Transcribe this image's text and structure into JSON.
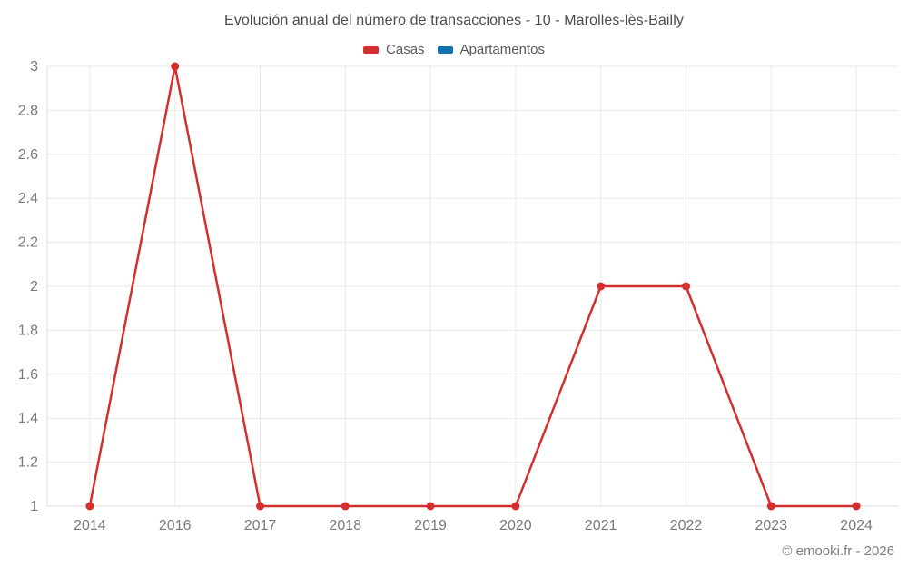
{
  "title": "Evolución anual del número de transacciones - 10 - Marolles-lès-Bailly",
  "legend": {
    "items": [
      {
        "label": "Casas",
        "color": "#d32f2f"
      },
      {
        "label": "Apartamentos",
        "color": "#1272ab"
      }
    ]
  },
  "footer": {
    "credit": "© emooki.fr - 2026"
  },
  "chart_data": {
    "type": "line",
    "title": "Evolución anual del número de transacciones - 10 - Marolles-lès-Bailly",
    "categories": [
      "2014",
      "2016",
      "2017",
      "2018",
      "2019",
      "2020",
      "2021",
      "2022",
      "2023",
      "2024"
    ],
    "series": [
      {
        "name": "Casas",
        "color": "#d32f2f",
        "values": [
          1,
          3,
          1,
          1,
          1,
          1,
          2,
          2,
          1,
          1
        ]
      },
      {
        "name": "Apartamentos",
        "color": "#1272ab",
        "values": [
          null,
          null,
          null,
          null,
          null,
          null,
          null,
          null,
          null,
          null
        ]
      }
    ],
    "xlabel": "",
    "ylabel": "",
    "ylim": [
      1,
      3
    ],
    "ytick_step": 0.2,
    "yticks": [
      1,
      1.2,
      1.4,
      1.6,
      1.8,
      2,
      2.2,
      2.4,
      2.6,
      2.8,
      3
    ],
    "grid": true,
    "legend_position": "top",
    "marker": "circle"
  },
  "styles": {
    "background": "#ffffff",
    "grid_color": "#e9e9e9",
    "axis_color": "#dcdcdc",
    "tick_color": "#7a7a7a",
    "title_color": "#4c4c4c",
    "legend_text_color": "#595959",
    "footer_color": "#7d7d7d"
  }
}
